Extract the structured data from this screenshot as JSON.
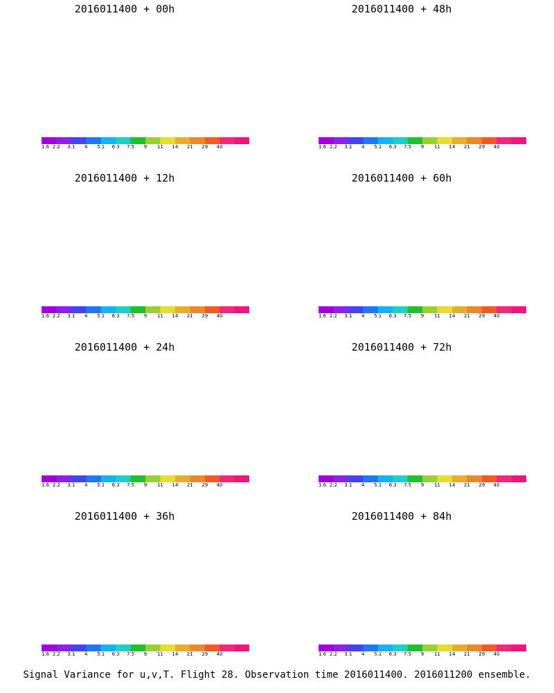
{
  "panels": [
    {
      "title": "2016011400 + 00h",
      "lead_hours": 0
    },
    {
      "title": "2016011400 + 48h",
      "lead_hours": 48
    },
    {
      "title": "2016011400 + 12h",
      "lead_hours": 12
    },
    {
      "title": "2016011400 + 60h",
      "lead_hours": 60
    },
    {
      "title": "2016011400 + 24h",
      "lead_hours": 24
    },
    {
      "title": "2016011400 + 72h",
      "lead_hours": 72
    },
    {
      "title": "2016011400 + 36h",
      "lead_hours": 36
    },
    {
      "title": "2016011400 + 84h",
      "lead_hours": 84
    }
  ],
  "colorbar": {
    "labels": [
      "1.6",
      "2.2",
      "3.1",
      "4",
      "5.1",
      "6.3",
      "7.5",
      "9",
      "11",
      "14",
      "21",
      "29",
      "40"
    ],
    "colors": [
      "#a000d8",
      "#8c22e6",
      "#4444ee",
      "#2277f0",
      "#15b4f0",
      "#1ecfc8",
      "#22c030",
      "#9ad033",
      "#e6dc32",
      "#e6ae2d",
      "#e88a2a",
      "#f05a28",
      "#f02878",
      "#f0157a"
    ]
  },
  "footer": "Signal Variance for u,v,T. Flight 28. Observation time 2016011400. 2016011200 ensemble."
}
